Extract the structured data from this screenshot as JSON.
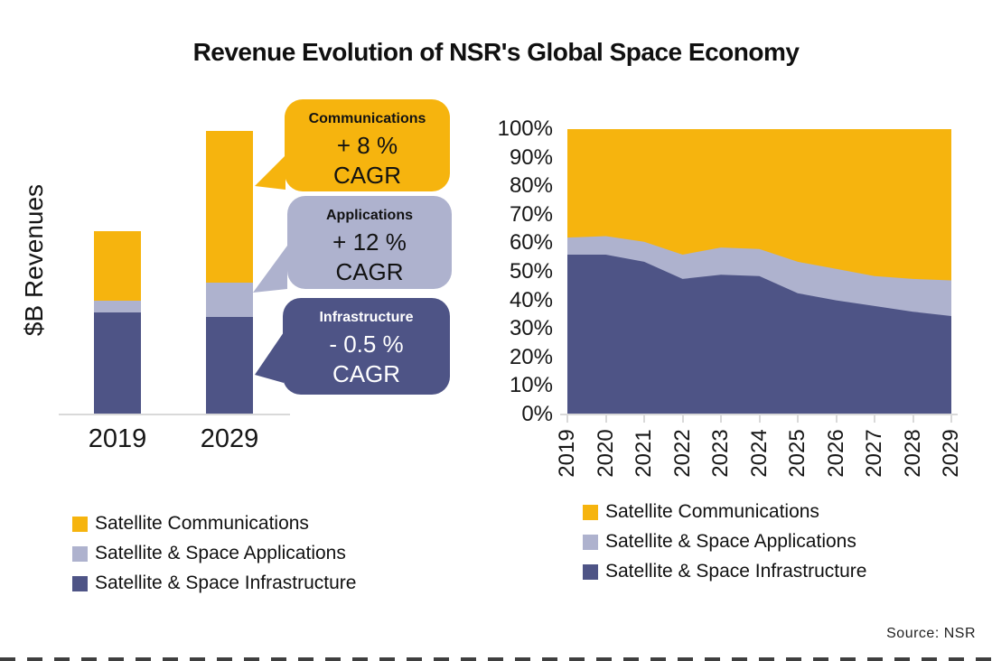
{
  "title": "Revenue Evolution of NSR's Global Space Economy",
  "source": "Source: NSR",
  "colors": {
    "communications": "#F6B40E",
    "applications": "#AEB2CE",
    "infrastructure": "#4E5486",
    "axis": "#D9D9D9"
  },
  "legend": {
    "items": [
      {
        "key": "communications",
        "label": "Satellite Communications",
        "color": "#F6B40E"
      },
      {
        "key": "applications",
        "label": "Satellite & Space Applications",
        "color": "#AEB2CE"
      },
      {
        "key": "infrastructure",
        "label": "Satellite & Space Infrastructure",
        "color": "#4E5486"
      }
    ]
  },
  "callouts": [
    {
      "title": "Communications",
      "rate": "+ 8 %",
      "cagr": "CAGR"
    },
    {
      "title": "Applications",
      "rate": "+ 12 %",
      "cagr": "CAGR"
    },
    {
      "title": "Infrastructure",
      "rate": "- 0.5 %",
      "cagr": "CAGR"
    }
  ],
  "chart_data": [
    {
      "type": "bar",
      "stacked": true,
      "title": "",
      "ylabel": "$B Revenues",
      "xlabel": "",
      "categories": [
        "2019",
        "2029"
      ],
      "units": "relative height (value axis unlabeled in figure)",
      "series": [
        {
          "name": "Satellite & Space Infrastructure",
          "key": "infrastructure",
          "values": [
            113,
            108
          ]
        },
        {
          "name": "Satellite & Space Applications",
          "key": "applications",
          "values": [
            13,
            38
          ]
        },
        {
          "name": "Satellite Communications",
          "key": "communications",
          "values": [
            77,
            168
          ]
        }
      ]
    },
    {
      "type": "area",
      "stacked": true,
      "normalized_percent": true,
      "x": [
        "2019",
        "2020",
        "2021",
        "2022",
        "2023",
        "2024",
        "2025",
        "2026",
        "2027",
        "2028",
        "2029"
      ],
      "ylim": [
        0,
        100
      ],
      "y_ticks": [
        "0%",
        "10%",
        "20%",
        "30%",
        "40%",
        "50%",
        "60%",
        "70%",
        "80%",
        "90%",
        "100%"
      ],
      "grid": false,
      "legend_position": "bottom",
      "series": [
        {
          "name": "Satellite & Space Infrastructure",
          "key": "infrastructure",
          "values": [
            56,
            56,
            53.5,
            47.5,
            49,
            48.5,
            42.5,
            40,
            38,
            36,
            34.5
          ]
        },
        {
          "name": "Satellite & Space Applications",
          "key": "applications",
          "values": [
            6,
            6.5,
            7,
            8.5,
            9.5,
            9.5,
            11,
            11,
            10.5,
            11.5,
            12.5
          ]
        },
        {
          "name": "Satellite Communications",
          "key": "communications",
          "values": [
            38,
            37.5,
            39.5,
            44,
            41.5,
            42,
            46.5,
            49,
            51.5,
            52.5,
            53
          ]
        }
      ]
    }
  ]
}
